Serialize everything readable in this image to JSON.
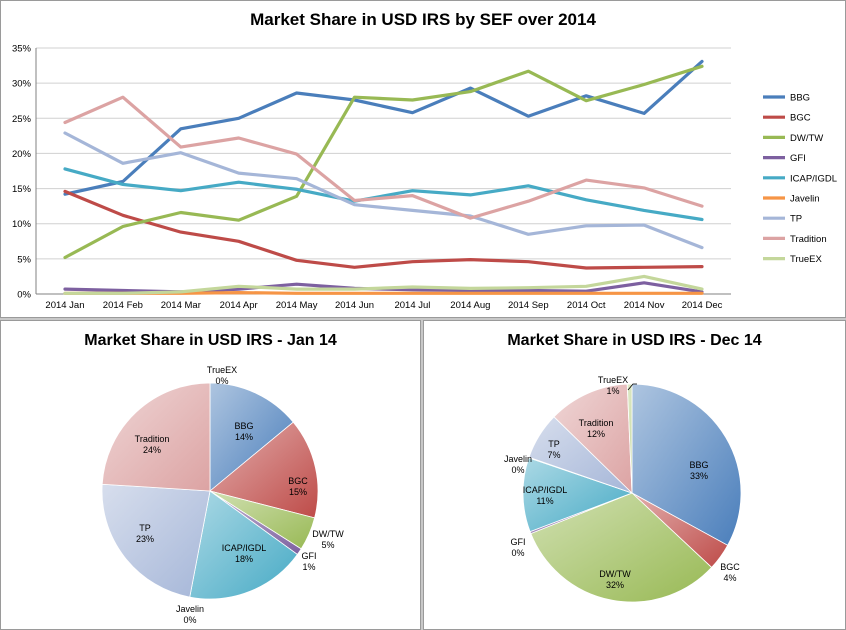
{
  "colors": {
    "BBG": "#4a7ebb",
    "BGC": "#be4b48",
    "DW/TW": "#98b954",
    "GFI": "#7d60a0",
    "ICAP/IGDL": "#46aac5",
    "Javelin": "#f69546",
    "TP": "#a5b6d8",
    "Tradition": "#dca3a3",
    "TrueEX": "#c4d79b"
  },
  "chart_data": [
    {
      "type": "line",
      "title": "Market Share in USD IRS by SEF over 2014",
      "xlabel": "",
      "ylabel": "",
      "categories": [
        "2014 Jan",
        "2014 Feb",
        "2014 Mar",
        "2014 Apr",
        "2014 May",
        "2014 Jun",
        "2014 Jul",
        "2014 Aug",
        "2014 Sep",
        "2014 Oct",
        "2014 Nov",
        "2014 Dec"
      ],
      "ylim": [
        0,
        35
      ],
      "yticks": [
        "0%",
        "5%",
        "10%",
        "15%",
        "20%",
        "25%",
        "30%",
        "35%"
      ],
      "grid": true,
      "legend": "right",
      "series": [
        {
          "name": "BBG",
          "values": [
            14.2,
            16.0,
            23.5,
            25.0,
            28.6,
            27.6,
            25.8,
            29.3,
            25.3,
            28.2,
            25.7,
            33.1
          ]
        },
        {
          "name": "BGC",
          "values": [
            14.6,
            11.2,
            8.8,
            7.5,
            4.8,
            3.8,
            4.6,
            4.9,
            4.6,
            3.7,
            3.8,
            3.9
          ]
        },
        {
          "name": "DW/TW",
          "values": [
            5.2,
            9.6,
            11.6,
            10.5,
            13.9,
            28.0,
            27.6,
            28.8,
            31.7,
            27.5,
            29.8,
            32.4
          ]
        },
        {
          "name": "GFI",
          "values": [
            0.7,
            0.5,
            0.3,
            0.7,
            1.4,
            0.8,
            0.6,
            0.5,
            0.5,
            0.4,
            1.6,
            0.3
          ]
        },
        {
          "name": "ICAP/IGDL",
          "values": [
            17.8,
            15.6,
            14.7,
            15.9,
            14.9,
            13.2,
            14.7,
            14.1,
            15.4,
            13.4,
            11.9,
            10.6
          ]
        },
        {
          "name": "Javelin",
          "values": [
            0.1,
            0.1,
            0.1,
            0.2,
            0.1,
            0.1,
            0.1,
            0.1,
            0.1,
            0.1,
            0.1,
            0.1
          ]
        },
        {
          "name": "TP",
          "values": [
            22.9,
            18.6,
            20.1,
            17.2,
            16.4,
            12.7,
            11.9,
            11.1,
            8.5,
            9.7,
            9.8,
            6.6
          ]
        },
        {
          "name": "Tradition",
          "values": [
            24.4,
            28.0,
            20.9,
            22.2,
            19.9,
            13.3,
            14.0,
            10.8,
            13.2,
            16.2,
            15.1,
            12.5
          ]
        },
        {
          "name": "TrueEX",
          "values": [
            0.1,
            0.1,
            0.3,
            1.1,
            0.7,
            0.7,
            1.0,
            0.8,
            0.9,
            1.1,
            2.5,
            0.7
          ]
        }
      ]
    },
    {
      "type": "pie",
      "title": "Market Share in USD IRS - Jan 14",
      "slices": [
        {
          "name": "BBG",
          "value": 14,
          "label": "14%"
        },
        {
          "name": "BGC",
          "value": 15,
          "label": "15%"
        },
        {
          "name": "DW/TW",
          "value": 5,
          "label": "5%"
        },
        {
          "name": "GFI",
          "value": 1,
          "label": "1%"
        },
        {
          "name": "ICAP/IGDL",
          "value": 18,
          "label": "18%"
        },
        {
          "name": "Javelin",
          "value": 0,
          "label": "0%"
        },
        {
          "name": "TP",
          "value": 23,
          "label": "23%"
        },
        {
          "name": "Tradition",
          "value": 24,
          "label": "24%"
        },
        {
          "name": "TrueEX",
          "value": 0,
          "label": "0%"
        }
      ]
    },
    {
      "type": "pie",
      "title": "Market Share in USD IRS - Dec 14",
      "slices": [
        {
          "name": "BBG",
          "value": 33,
          "label": "33%"
        },
        {
          "name": "BGC",
          "value": 4,
          "label": "4%"
        },
        {
          "name": "DW/TW",
          "value": 32,
          "label": "32%"
        },
        {
          "name": "GFI",
          "value": 0.3,
          "label": "0%"
        },
        {
          "name": "ICAP/IGDL",
          "value": 11,
          "label": "11%"
        },
        {
          "name": "Javelin",
          "value": 0.1,
          "label": "0%"
        },
        {
          "name": "TP",
          "value": 7,
          "label": "7%"
        },
        {
          "name": "Tradition",
          "value": 12,
          "label": "12%"
        },
        {
          "name": "TrueEX",
          "value": 0.7,
          "label": "1%"
        }
      ]
    }
  ]
}
